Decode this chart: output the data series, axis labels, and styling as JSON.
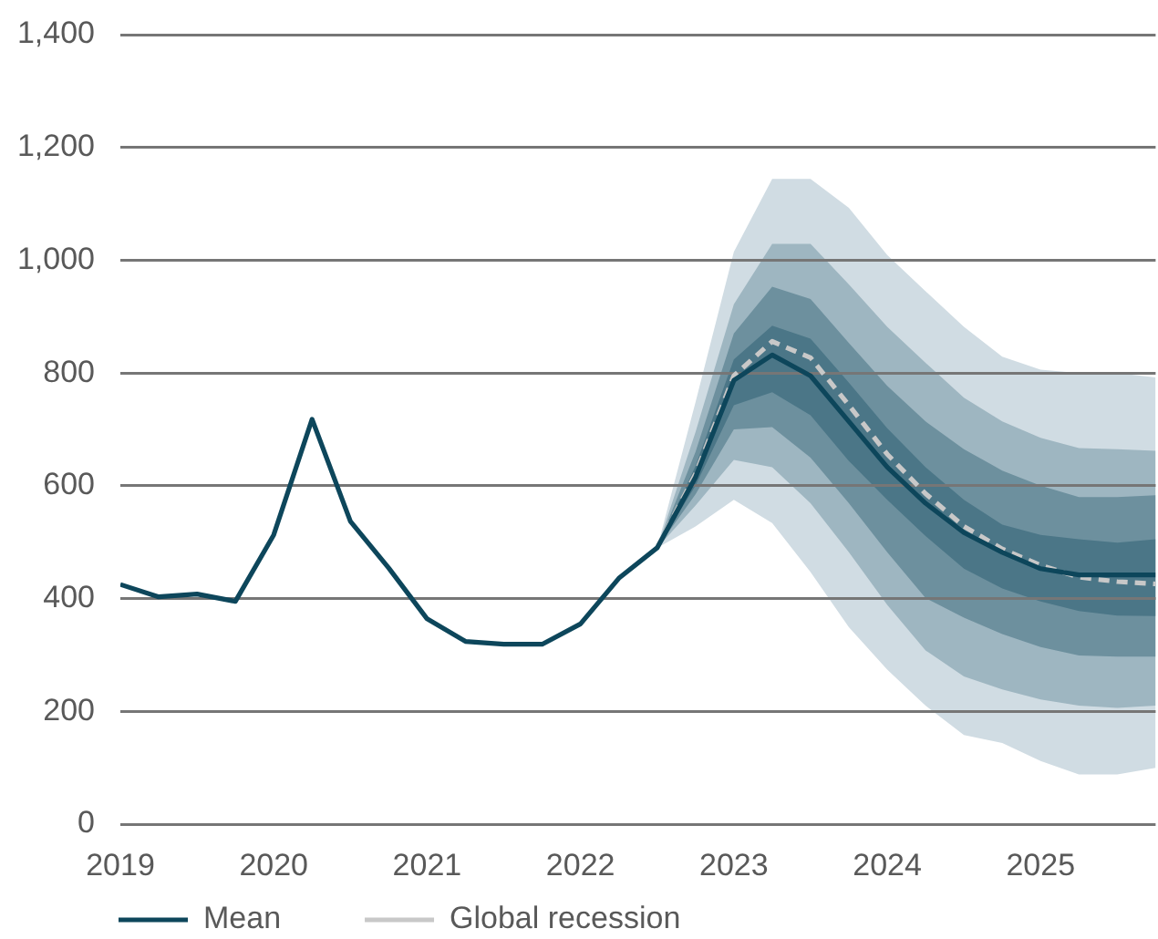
{
  "chart_data": {
    "type": "line",
    "series": [
      {
        "type": "area",
        "color": "#d0dce3",
        "x": [
          2022.5,
          2022.75,
          2023,
          2023.25,
          2023.5,
          2023.75,
          2024,
          2024.25,
          2024.5,
          2024.75,
          2025,
          2025.25,
          2025.5,
          2025.75
        ],
        "values": [
          null,
          null,
          null,
          null,
          null,
          null,
          null,
          null,
          null,
          null,
          null,
          null,
          null,
          null
        ],
        "lower": [
          490,
          528,
          575,
          534,
          447,
          349,
          274,
          210,
          158,
          144,
          112,
          88,
          88,
          100
        ],
        "upper": [
          490,
          748,
          1015,
          1144,
          1144,
          1093,
          1009,
          945,
          882,
          829,
          806,
          800,
          800,
          792
        ]
      },
      {
        "type": "area",
        "color": "#9eb6c1",
        "x": [
          2022.5,
          2022.75,
          2023,
          2023.25,
          2023.5,
          2023.75,
          2024,
          2024.25,
          2024.5,
          2024.75,
          2025,
          2025.25,
          2025.5,
          2025.75
        ],
        "values": [
          null,
          null,
          null,
          null,
          null,
          null,
          null,
          null,
          null,
          null,
          null,
          null,
          null,
          null
        ],
        "lower": [
          490,
          565,
          646,
          633,
          569,
          482,
          389,
          308,
          262,
          239,
          221,
          210,
          206,
          210
        ],
        "upper": [
          490,
          695,
          922,
          1029,
          1029,
          957,
          882,
          818,
          756,
          714,
          685,
          667,
          665,
          662
        ]
      },
      {
        "type": "area",
        "color": "#6d909e",
        "x": [
          2022.5,
          2022.75,
          2023,
          2023.25,
          2023.5,
          2023.75,
          2024,
          2024.25,
          2024.5,
          2024.75,
          2025,
          2025.25,
          2025.5,
          2025.75
        ],
        "values": [
          null,
          null,
          null,
          null,
          null,
          null,
          null,
          null,
          null,
          null,
          null,
          null,
          null,
          null
        ],
        "lower": [
          490,
          585,
          700,
          704,
          650,
          569,
          482,
          401,
          366,
          337,
          314,
          299,
          297,
          297
        ],
        "upper": [
          490,
          660,
          870,
          953,
          931,
          853,
          777,
          714,
          665,
          627,
          600,
          580,
          580,
          583
        ]
      },
      {
        "type": "area",
        "color": "#4b7687",
        "x": [
          2022.5,
          2022.75,
          2023,
          2023.25,
          2023.5,
          2023.75,
          2024,
          2024.25,
          2024.5,
          2024.75,
          2025,
          2025.25,
          2025.5,
          2025.75
        ],
        "values": [
          null,
          null,
          null,
          null,
          null,
          null,
          null,
          null,
          null,
          null,
          null,
          null,
          null,
          null
        ],
        "lower": [
          490,
          600,
          743,
          766,
          725,
          644,
          575,
          511,
          453,
          418,
          395,
          378,
          370,
          369
        ],
        "upper": [
          490,
          635,
          824,
          884,
          861,
          783,
          702,
          633,
          575,
          531,
          513,
          505,
          499,
          505
        ]
      },
      {
        "name": "Mean",
        "color": "#0d465b",
        "x": [
          2019,
          2019.25,
          2019.5,
          2019.75,
          2020,
          2020.25,
          2020.5,
          2020.75,
          2021,
          2021.25,
          2021.5,
          2021.75,
          2022,
          2022.25,
          2022.5,
          2022.75,
          2023,
          2023.25,
          2023.5,
          2023.75,
          2024,
          2024.25,
          2024.5,
          2024.75,
          2025,
          2025.25,
          2025.5,
          2025.75
        ],
        "values": [
          425,
          403,
          408,
          395,
          513,
          718,
          537,
          454,
          364,
          324,
          319,
          319,
          355,
          436,
          490,
          615,
          787,
          832,
          795,
          714,
          633,
          569,
          517,
          482,
          453,
          442,
          442,
          442
        ]
      },
      {
        "name": "Global recession",
        "color": "#c8c8c8",
        "line_style": "dashed",
        "x": [
          2022.5,
          2022.75,
          2023,
          2023.25,
          2023.5,
          2023.75,
          2024,
          2024.25,
          2024.5,
          2024.75,
          2025,
          2025.25,
          2025.5,
          2025.75
        ],
        "values": [
          490,
          621,
          795,
          856,
          827,
          743,
          656,
          586,
          528,
          488,
          459,
          438,
          430,
          426
        ]
      }
    ],
    "xlim": [
      2019,
      2025.75
    ],
    "xticks": [
      2019,
      2020,
      2021,
      2022,
      2023,
      2024,
      2025
    ],
    "ylim": [
      0,
      1400
    ],
    "yticks": [
      0,
      200,
      400,
      600,
      800,
      {
        "value": 1000,
        "label": "1,000"
      },
      {
        "value": 1200,
        "label": "1,200"
      },
      {
        "value": 1400,
        "label": "1,400"
      }
    ],
    "grid": "y",
    "legend": "bottom left",
    "marker": "none",
    "line_style": "solid"
  }
}
